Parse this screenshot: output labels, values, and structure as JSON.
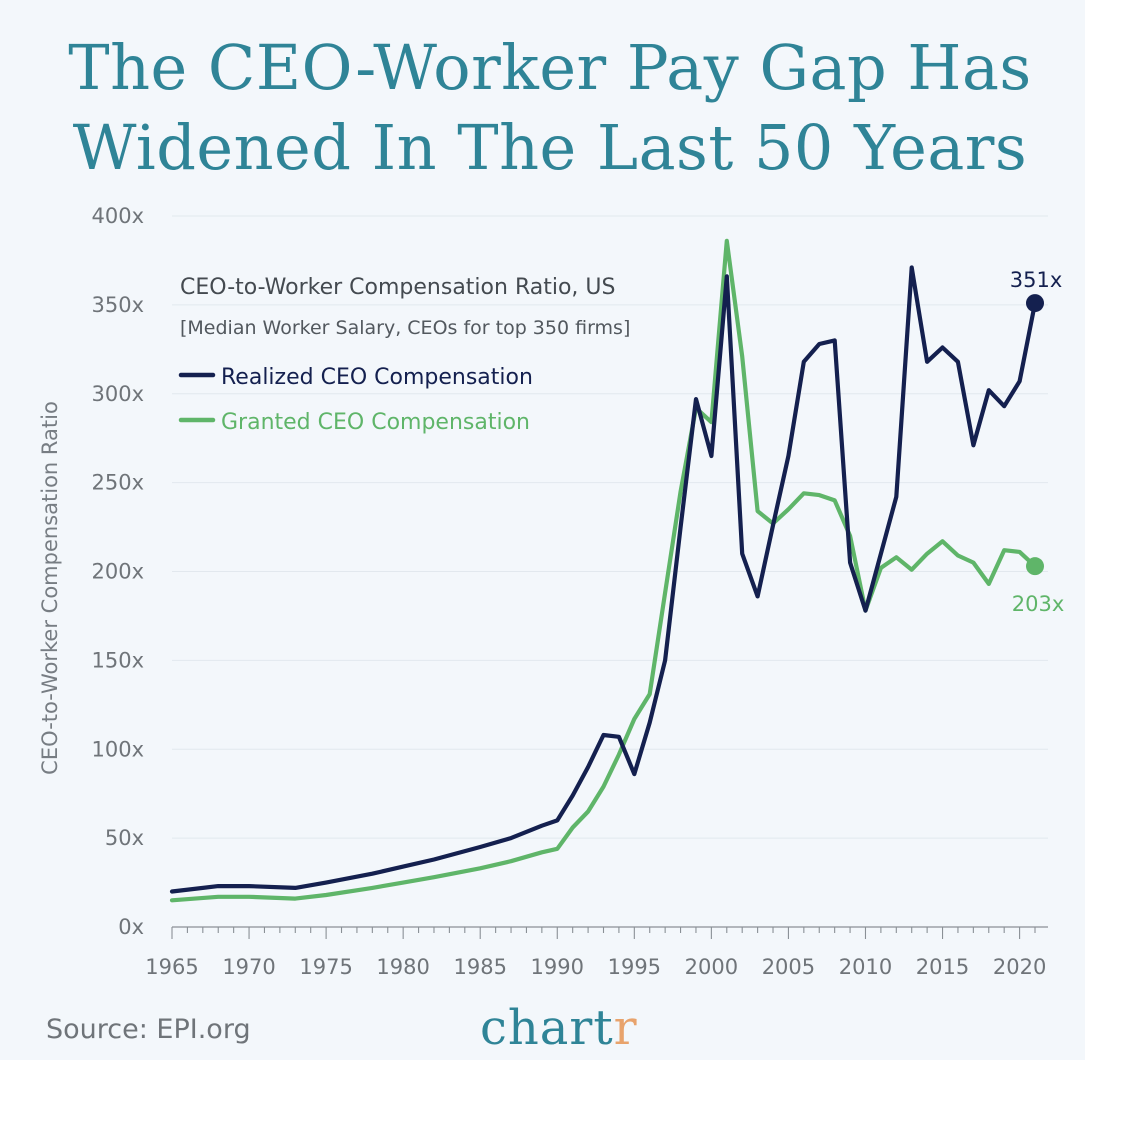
{
  "title_line1": "The CEO-Worker Pay Gap Has",
  "title_line2": "Widened In The Last 50 Years",
  "source": "Source: EPI.org",
  "brand": {
    "main": "chart",
    "accent": "r"
  },
  "colors": {
    "background": "#f3f7fb",
    "title": "#2f8497",
    "realized": "#14204f",
    "granted": "#5fb569",
    "brand_accent": "#e8a36c"
  },
  "chart_data": {
    "type": "line",
    "title": "CEO-to-Worker Compensation Ratio, US",
    "subtitle": "[Median Worker Salary, CEOs for top 350 firms]",
    "ylabel": "CEO-to-Worker Compensation Ratio",
    "xlabel": "",
    "xlim": [
      1965,
      2021
    ],
    "ylim": [
      0,
      400
    ],
    "grid": true,
    "legend_position": "top-left",
    "y_ticks": [
      0,
      50,
      100,
      150,
      200,
      250,
      300,
      350,
      400
    ],
    "y_tick_labels": [
      "0x",
      "50x",
      "100x",
      "150x",
      "200x",
      "250x",
      "300x",
      "350x",
      "400x"
    ],
    "x_ticks": [
      1965,
      1970,
      1975,
      1980,
      1985,
      1990,
      1995,
      2000,
      2005,
      2010,
      2015,
      2020
    ],
    "x_tick_labels": [
      "1965",
      "1970",
      "1975",
      "1980",
      "1985",
      "1990",
      "1995",
      "2000",
      "2005",
      "2010",
      "2015",
      "2020"
    ],
    "series": [
      {
        "name": "Realized CEO Compensation",
        "color": "#14204f",
        "end_label": "351x",
        "points": [
          [
            1965,
            20
          ],
          [
            1968,
            23
          ],
          [
            1970,
            23
          ],
          [
            1973,
            22
          ],
          [
            1975,
            25
          ],
          [
            1978,
            30
          ],
          [
            1980,
            34
          ],
          [
            1982,
            38
          ],
          [
            1985,
            45
          ],
          [
            1987,
            50
          ],
          [
            1989,
            57
          ],
          [
            1990,
            60
          ],
          [
            1991,
            74
          ],
          [
            1992,
            90
          ],
          [
            1993,
            108
          ],
          [
            1994,
            107
          ],
          [
            1995,
            86
          ],
          [
            1996,
            115
          ],
          [
            1997,
            150
          ],
          [
            1998,
            225
          ],
          [
            1999,
            297
          ],
          [
            2000,
            265
          ],
          [
            2001,
            366
          ],
          [
            2002,
            210
          ],
          [
            2003,
            186
          ],
          [
            2004,
            226
          ],
          [
            2005,
            265
          ],
          [
            2006,
            318
          ],
          [
            2007,
            328
          ],
          [
            2008,
            330
          ],
          [
            2009,
            205
          ],
          [
            2010,
            178
          ],
          [
            2011,
            210
          ],
          [
            2012,
            242
          ],
          [
            2013,
            371
          ],
          [
            2014,
            318
          ],
          [
            2015,
            326
          ],
          [
            2016,
            318
          ],
          [
            2017,
            271
          ],
          [
            2018,
            302
          ],
          [
            2019,
            293
          ],
          [
            2020,
            307
          ],
          [
            2021,
            351
          ]
        ]
      },
      {
        "name": "Granted CEO Compensation",
        "color": "#5fb569",
        "end_label": "203x",
        "points": [
          [
            1965,
            15
          ],
          [
            1968,
            17
          ],
          [
            1970,
            17
          ],
          [
            1973,
            16
          ],
          [
            1975,
            18
          ],
          [
            1978,
            22
          ],
          [
            1980,
            25
          ],
          [
            1982,
            28
          ],
          [
            1985,
            33
          ],
          [
            1987,
            37
          ],
          [
            1989,
            42
          ],
          [
            1990,
            44
          ],
          [
            1991,
            56
          ],
          [
            1992,
            65
          ],
          [
            1993,
            79
          ],
          [
            1994,
            97
          ],
          [
            1995,
            117
          ],
          [
            1996,
            131
          ],
          [
            1997,
            188
          ],
          [
            1998,
            245
          ],
          [
            1999,
            292
          ],
          [
            2000,
            284
          ],
          [
            2001,
            386
          ],
          [
            2002,
            321
          ],
          [
            2003,
            234
          ],
          [
            2004,
            227
          ],
          [
            2005,
            235
          ],
          [
            2006,
            244
          ],
          [
            2007,
            243
          ],
          [
            2008,
            240
          ],
          [
            2009,
            220
          ],
          [
            2010,
            178
          ],
          [
            2011,
            202
          ],
          [
            2012,
            208
          ],
          [
            2013,
            201
          ],
          [
            2014,
            210
          ],
          [
            2015,
            217
          ],
          [
            2016,
            209
          ],
          [
            2017,
            205
          ],
          [
            2018,
            193
          ],
          [
            2019,
            212
          ],
          [
            2020,
            211
          ],
          [
            2021,
            203
          ]
        ]
      }
    ]
  }
}
